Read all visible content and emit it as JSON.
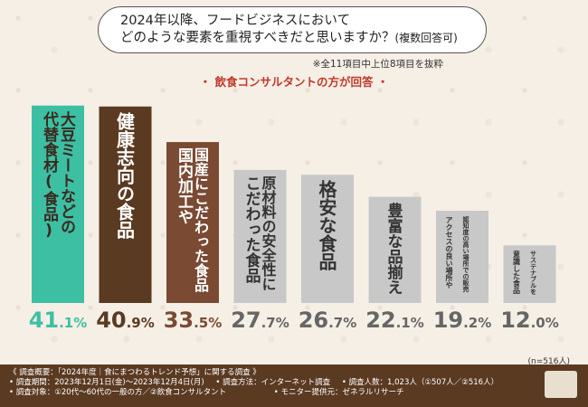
{
  "question": {
    "line1": "2024年以降、フードビジネスにおいて",
    "line2": "どのような要素を重視すべきだと思いますか？",
    "line2_small": "(複数回答可)"
  },
  "note": "※全11項目中上位8項目を抜粋",
  "subtitle": "・ 飲食コンサルタントの方が回答 ・",
  "n_label": "(n=516人)",
  "chart_data": {
    "type": "bar",
    "categories": [
      "大豆ミートなどの代替食材(食品)",
      "健康志向の食品",
      "国産にこだわった国内加工や食品",
      "原材料の安全性にこだわった食品",
      "格安な食品",
      "豊富な品揃え",
      "アクセスの良い場所や認知度の高い場所での販売",
      "サステナブルを意識した食品"
    ],
    "values": [
      41.1,
      40.9,
      33.5,
      27.7,
      26.7,
      22.1,
      19.2,
      12.0
    ],
    "ylim": [
      0,
      45
    ]
  },
  "bars": [
    {
      "lines": [
        "大豆ミートなどの",
        "代替食材(食品)"
      ],
      "value_int": "41",
      "value_dec": ".1%",
      "color": "#3dbfa3",
      "text_color": "#3a2a1f"
    },
    {
      "lines": [
        "健康志向の食品"
      ],
      "value_int": "40",
      "value_dec": ".9%",
      "color": "#5b3a22",
      "text_color": "#ffffff"
    },
    {
      "lines": [
        "国産にこだわった食品",
        "国内加工や"
      ],
      "value_int": "33",
      "value_dec": ".5%",
      "color": "#7a4a33",
      "text_color": "#ffffff"
    },
    {
      "lines": [
        "原材料の安全性に",
        "こだわった食品"
      ],
      "value_int": "27",
      "value_dec": ".7%",
      "color": "#c8c8c8",
      "text_color": "#333333"
    },
    {
      "lines": [
        "格安な食品"
      ],
      "value_int": "26",
      "value_dec": ".7%",
      "color": "#c8c8c8",
      "text_color": "#333333"
    },
    {
      "lines": [
        "豊富な品揃え"
      ],
      "value_int": "22",
      "value_dec": ".1%",
      "color": "#c8c8c8",
      "text_color": "#333333"
    },
    {
      "lines": [
        "認知度の高い場所での販売",
        "アクセスの良い場所や"
      ],
      "value_int": "19",
      "value_dec": ".2%",
      "color": "#c8c8c8",
      "text_color": "#333333"
    },
    {
      "lines": [
        "サステナブルを",
        "意識した食品"
      ],
      "value_int": "12",
      "value_dec": ".0%",
      "color": "#c8c8c8",
      "text_color": "#333333"
    }
  ],
  "value_colors": {
    "top": "#3dbfa3",
    "second": "#5b3a22",
    "third": "#7a4a33",
    "rest": "#666666"
  },
  "footer": {
    "line1": "《 調査概要：「2024年度｜食にまつわるトレンド予想」に関する調査 》",
    "line2a": "• 調査期間：2023年12月1日(金)〜2023年12月4日(月)",
    "line2b": "• 調査方法：インターネット調査",
    "line2c": "• 調査人数：1,023人（①507人／②516人）",
    "line3a": "• 調査対象：①20代〜60代の一般の方／②飲食コンサルタント",
    "line3b": "• モニター提供元：ゼネラルリサーチ"
  }
}
